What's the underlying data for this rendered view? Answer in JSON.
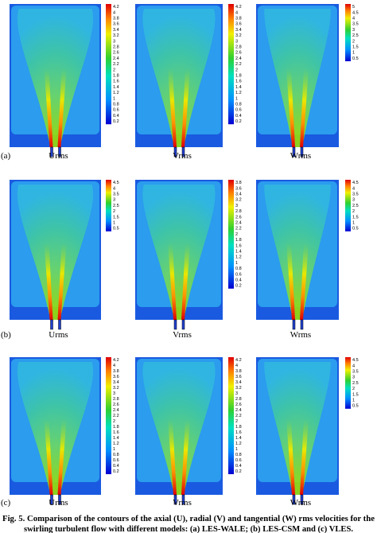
{
  "panels": [
    {
      "label": "(a)",
      "plots": [
        {
          "name": "Urms",
          "colorbar": [
            "4.2",
            "4",
            "3.8",
            "3.6",
            "3.4",
            "3.2",
            "3",
            "2.8",
            "2.6",
            "2.4",
            "2.2",
            "2",
            "1.8",
            "1.6",
            "1.4",
            "1.2",
            "1",
            "0.8",
            "0.6",
            "0.4",
            "0.2"
          ]
        },
        {
          "name": "Vrms",
          "colorbar": [
            "4.2",
            "4",
            "3.8",
            "3.6",
            "3.4",
            "3.2",
            "3",
            "2.8",
            "2.6",
            "2.4",
            "2.2",
            "2",
            "1.8",
            "1.6",
            "1.4",
            "1.2",
            "1",
            "0.8",
            "0.6",
            "0.4",
            "0.2"
          ]
        },
        {
          "name": "Wrms",
          "colorbar": [
            "5",
            "4.5",
            "4",
            "3.5",
            "3",
            "2.5",
            "2",
            "1.5",
            "1",
            "0.5"
          ]
        }
      ]
    },
    {
      "label": "(b)",
      "plots": [
        {
          "name": "Urms",
          "colorbar": [
            "4.5",
            "4",
            "3.5",
            "3",
            "2.5",
            "2",
            "1.5",
            "1",
            "0.5"
          ]
        },
        {
          "name": "Vrms",
          "colorbar": [
            "3.8",
            "3.6",
            "3.4",
            "3.2",
            "3",
            "2.8",
            "2.6",
            "2.4",
            "2.2",
            "2",
            "1.8",
            "1.6",
            "1.4",
            "1.2",
            "1",
            "0.8",
            "0.6",
            "0.4",
            "0.2"
          ]
        },
        {
          "name": "Wrms",
          "colorbar": [
            "4.5",
            "4",
            "3.5",
            "3",
            "2.5",
            "2",
            "1.5",
            "1",
            "0.5"
          ]
        }
      ]
    },
    {
      "label": "(c)",
      "plots": [
        {
          "name": "Urms",
          "colorbar": [
            "4.2",
            "4",
            "3.8",
            "3.6",
            "3.4",
            "3.2",
            "3",
            "2.8",
            "2.6",
            "2.4",
            "2.2",
            "2",
            "1.8",
            "1.6",
            "1.4",
            "1.2",
            "1",
            "0.8",
            "0.6",
            "0.4",
            "0.2"
          ]
        },
        {
          "name": "Vrms",
          "colorbar": [
            "4.2",
            "4",
            "3.8",
            "3.6",
            "3.4",
            "3.2",
            "3",
            "2.8",
            "2.6",
            "2.4",
            "2.2",
            "2",
            "1.8",
            "1.6",
            "1.4",
            "1.2",
            "1",
            "0.8",
            "0.6",
            "0.4",
            "0.2"
          ]
        },
        {
          "name": "Wrms",
          "colorbar": [
            "4.5",
            "4",
            "3.5",
            "3",
            "2.5",
            "2",
            "1.5",
            "1",
            "0.5"
          ]
        }
      ]
    }
  ],
  "caption": [
    "Fig. 5. Comparison of the contours of the axial (U), radial (V) and tangential (W) rms velocities for the",
    "swirling turbulent flow with different models: (a) LES-WALE; (b) LES-CSM and (c) VLES."
  ]
}
